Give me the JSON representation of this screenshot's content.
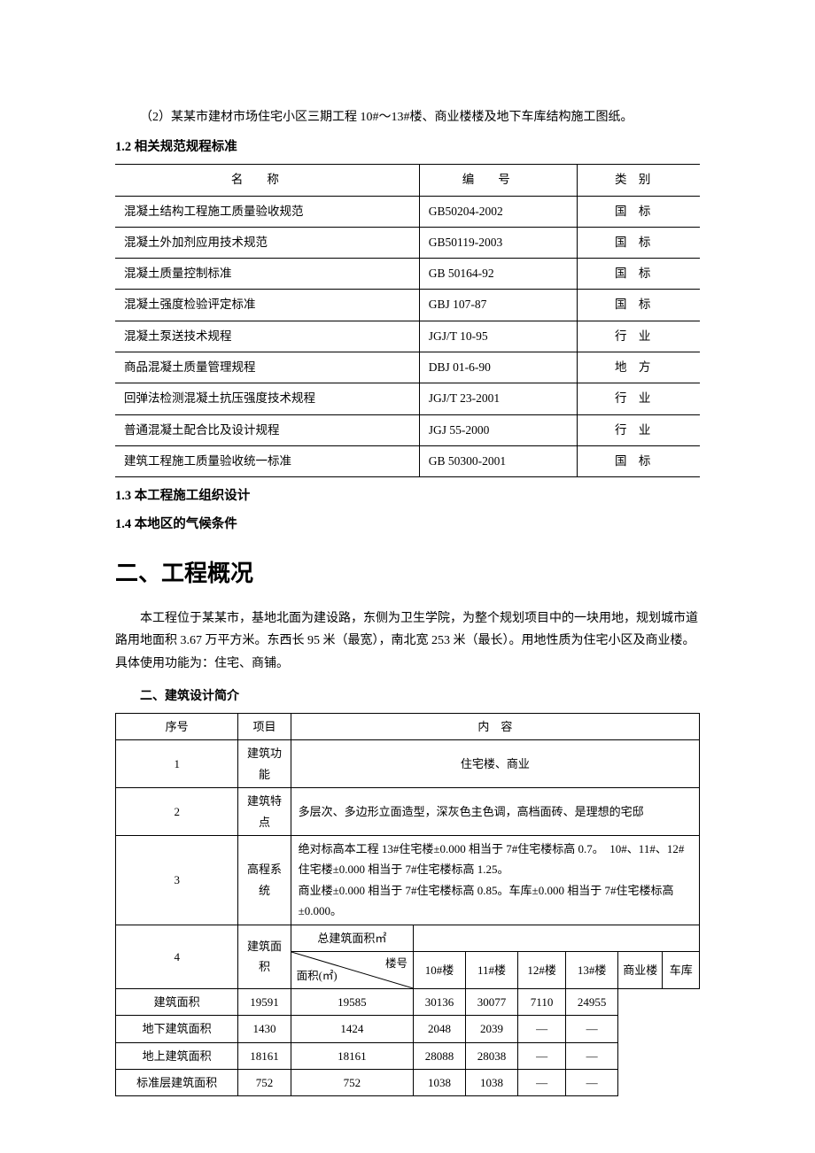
{
  "intro_para": "（2）某某市建材市场住宅小区三期工程 10#～13#楼、商业楼楼及地下车库结构施工图纸。",
  "heading_12": "1.2 相关规范规程标准",
  "standards": {
    "head_name": "名称",
    "head_code": "编号",
    "head_cat": "类别",
    "rows": [
      {
        "name": "混凝土结构工程施工质量验收规范",
        "code": "GB50204-2002",
        "cat": "国标"
      },
      {
        "name": "混凝土外加剂应用技术规范",
        "code": "GB50119-2003",
        "cat": "国标"
      },
      {
        "name": "混凝土质量控制标准",
        "code": "GB 50164-92",
        "cat": "国标"
      },
      {
        "name": "混凝土强度检验评定标准",
        "code": "GBJ 107-87",
        "cat": "国标"
      },
      {
        "name": "混凝土泵送技术规程",
        "code": "JGJ/T 10-95",
        "cat": "行业"
      },
      {
        "name": "商品混凝土质量管理规程",
        "code": "DBJ 01-6-90",
        "cat": "地方"
      },
      {
        "name": "回弹法检测混凝土抗压强度技术规程",
        "code": "JGJ/T 23-2001",
        "cat": "行业"
      },
      {
        "name": "普通混凝土配合比及设计规程",
        "code": "JGJ 55-2000",
        "cat": "行业"
      },
      {
        "name": "建筑工程施工质量验收统一标准",
        "code": "GB 50300-2001",
        "cat": "国标"
      }
    ]
  },
  "heading_13": "1.3 本工程施工组织设计",
  "heading_14": "1.4 本地区的气候条件",
  "section2_title": "二、工程概况",
  "overview_para": "本工程位于某某市，基地北面为建设路，东侧为卫生学院，为整个规划项目中的一块用地，规划城市道路用地面积 3.67 万平方米。东西长 95 米（最宽），南北宽 253 米（最长）。用地性质为住宅小区及商业楼。具体使用功能为：住宅、商铺。",
  "arch_heading": "二、建筑设计简介",
  "arch": {
    "head_idx": "序号",
    "head_proj": "项目",
    "head_content": "内　容",
    "r1_idx": "1",
    "r1_proj": "建筑功能",
    "r1_content": "住宅楼、商业",
    "r2_idx": "2",
    "r2_proj": "建筑特点",
    "r2_content": "多层次、多边形立面造型，深灰色主色调，高档面砖、是理想的宅邸",
    "r3_idx": "3",
    "r3_proj": "高程系统",
    "r3_content": "绝对标高本工程 13#住宅楼±0.000 相当于 7#住宅楼标高 0.7。　10#、11#、12#住宅楼±0.000 相当于 7#住宅楼标高 1.25。\n商业楼±0.000 相当于 7#住宅楼标高 0.85。车库±0.000 相当于 7#住宅楼标高±0.000。",
    "r4_idx": "4",
    "r4_proj": "建筑面积",
    "r4_total_label": "总建筑面积㎡",
    "r4_diag_top": "楼号",
    "r4_diag_bot": "面积(㎡)",
    "r4_cols": [
      "10#楼",
      "11#楼",
      "12#楼",
      "13#楼",
      "商业楼",
      "车库"
    ],
    "r4_rows": [
      {
        "label": "建筑面积",
        "v": [
          "19591",
          "19585",
          "30136",
          "30077",
          "7110",
          "24955"
        ]
      },
      {
        "label": "地下建筑面积",
        "v": [
          "1430",
          "1424",
          "2048",
          "2039",
          "—",
          "—"
        ]
      },
      {
        "label": "地上建筑面积",
        "v": [
          "18161",
          "18161",
          "28088",
          "28038",
          "—",
          "—"
        ]
      },
      {
        "label": "标准层建筑面积",
        "v": [
          "752",
          "752",
          "1038",
          "1038",
          "—",
          "—"
        ]
      }
    ]
  }
}
